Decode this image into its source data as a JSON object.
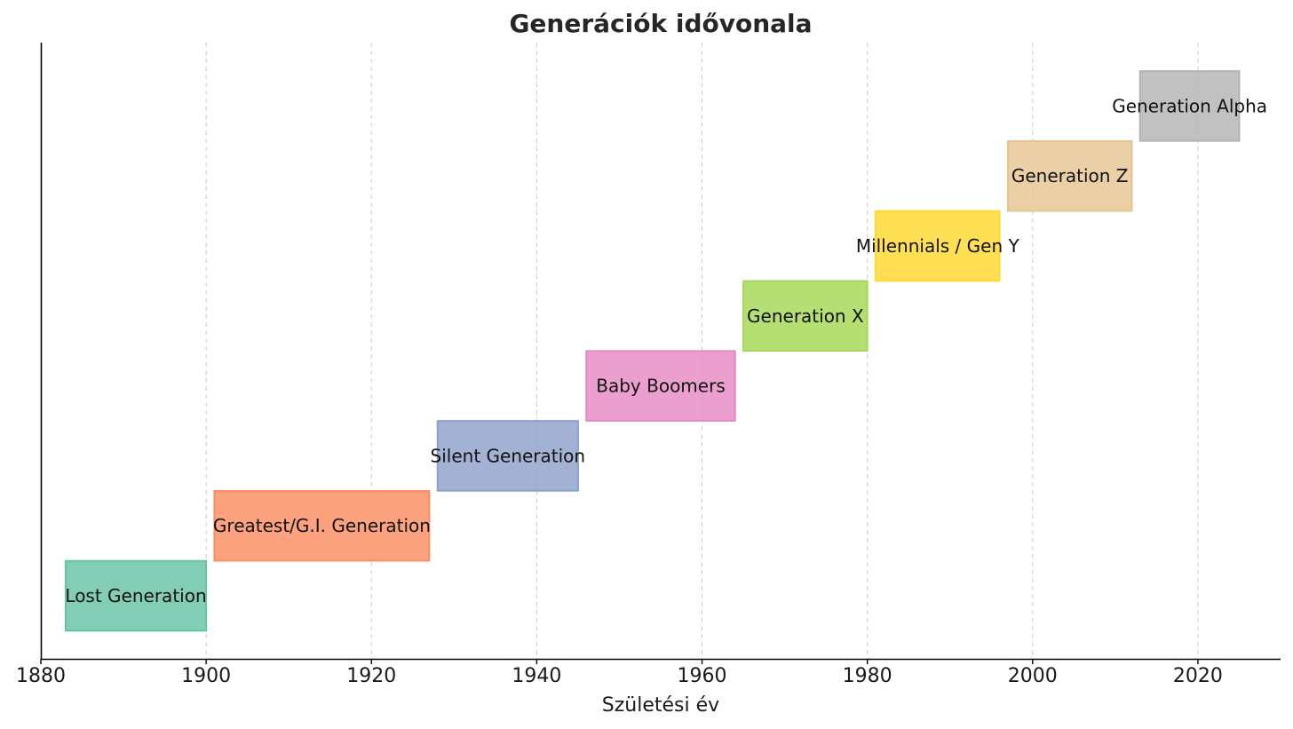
{
  "chart_data": {
    "type": "timeline",
    "title": "Generációk idővonala",
    "xlabel": "Születési év",
    "ylabel": "",
    "xlim": [
      1880,
      2030
    ],
    "xticks": [
      1880,
      1900,
      1920,
      1940,
      1960,
      1980,
      2000,
      2020
    ],
    "grid": "vertical dashed",
    "generations": [
      {
        "name": "Lost Generation",
        "start": 1883,
        "end": 1900,
        "color": "#66c2a5"
      },
      {
        "name": "Greatest/G.I. Generation",
        "start": 1901,
        "end": 1927,
        "color": "#fc8d62"
      },
      {
        "name": "Silent Generation",
        "start": 1928,
        "end": 1945,
        "color": "#8da0cb"
      },
      {
        "name": "Baby Boomers",
        "start": 1946,
        "end": 1964,
        "color": "#e78ac3"
      },
      {
        "name": "Generation X",
        "start": 1965,
        "end": 1980,
        "color": "#a6d854"
      },
      {
        "name": "Millennials / Gen Y",
        "start": 1981,
        "end": 1996,
        "color": "#ffd92f"
      },
      {
        "name": "Generation Z",
        "start": 1997,
        "end": 2012,
        "color": "#e5c494"
      },
      {
        "name": "Generation Alpha",
        "start": 2013,
        "end": 2025,
        "color": "#b3b3b3"
      }
    ]
  }
}
